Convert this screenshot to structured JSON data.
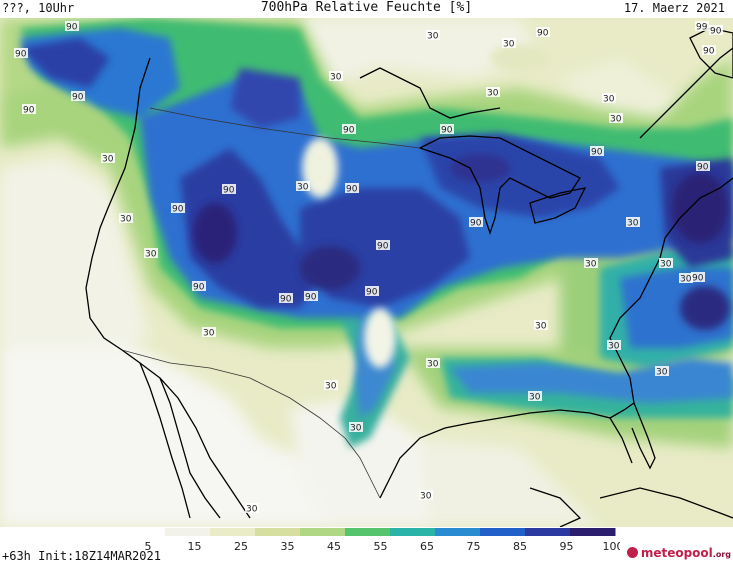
{
  "header": {
    "left": "???, 10Uhr",
    "title": "700hPa Relative Feuchte [%]",
    "date": "17. Maerz 2021"
  },
  "footer": {
    "forecast": "+63h",
    "init": "Init:18Z14MAR2021"
  },
  "logo": {
    "name": "meteopool",
    "suffix": ".org"
  },
  "map_labels": [
    {
      "text": "30"
    },
    {
      "text": "30"
    },
    {
      "text": "30"
    },
    {
      "text": "30"
    },
    {
      "text": "30"
    },
    {
      "text": "30"
    },
    {
      "text": "30"
    },
    {
      "text": "30"
    },
    {
      "text": "30"
    },
    {
      "text": "30"
    },
    {
      "text": "30"
    },
    {
      "text": "30"
    },
    {
      "text": "30"
    },
    {
      "text": "30"
    },
    {
      "text": "30"
    },
    {
      "text": "30"
    },
    {
      "text": "30"
    },
    {
      "text": "30"
    },
    {
      "text": "30"
    },
    {
      "text": "30"
    },
    {
      "text": "30"
    },
    {
      "text": "30"
    },
    {
      "text": "30"
    },
    {
      "text": "30"
    },
    {
      "text": "90"
    },
    {
      "text": "90"
    },
    {
      "text": "90"
    },
    {
      "text": "90"
    },
    {
      "text": "90"
    },
    {
      "text": "90"
    },
    {
      "text": "90"
    },
    {
      "text": "90"
    },
    {
      "text": "90"
    },
    {
      "text": "90"
    },
    {
      "text": "90"
    },
    {
      "text": "90"
    },
    {
      "text": "90"
    },
    {
      "text": "90"
    },
    {
      "text": "90"
    },
    {
      "text": "90"
    },
    {
      "text": "90"
    },
    {
      "text": "90"
    },
    {
      "text": "90"
    },
    {
      "text": "90"
    },
    {
      "text": "90"
    },
    {
      "text": "99"
    }
  ],
  "legend": {
    "ticks": [
      "5",
      "15",
      "25",
      "35",
      "45",
      "55",
      "65",
      "75",
      "85",
      "95",
      "100"
    ],
    "colors": [
      "#ffffff",
      "#f2f2ea",
      "#eaecc8",
      "#d6dea0",
      "#b0d884",
      "#56c46c",
      "#2ab4a8",
      "#2a8cd0",
      "#2060c8",
      "#2a3aa0",
      "#2c1e6e"
    ]
  },
  "colors": {
    "dry": "#f4f4f0",
    "low": "#e6e8c0",
    "mid": "#aad480",
    "green": "#48bf6a",
    "teal": "#2aaeb6",
    "blue": "#2872d0",
    "dark_blue": "#2a3ca0",
    "deep": "#2c1e6e"
  }
}
